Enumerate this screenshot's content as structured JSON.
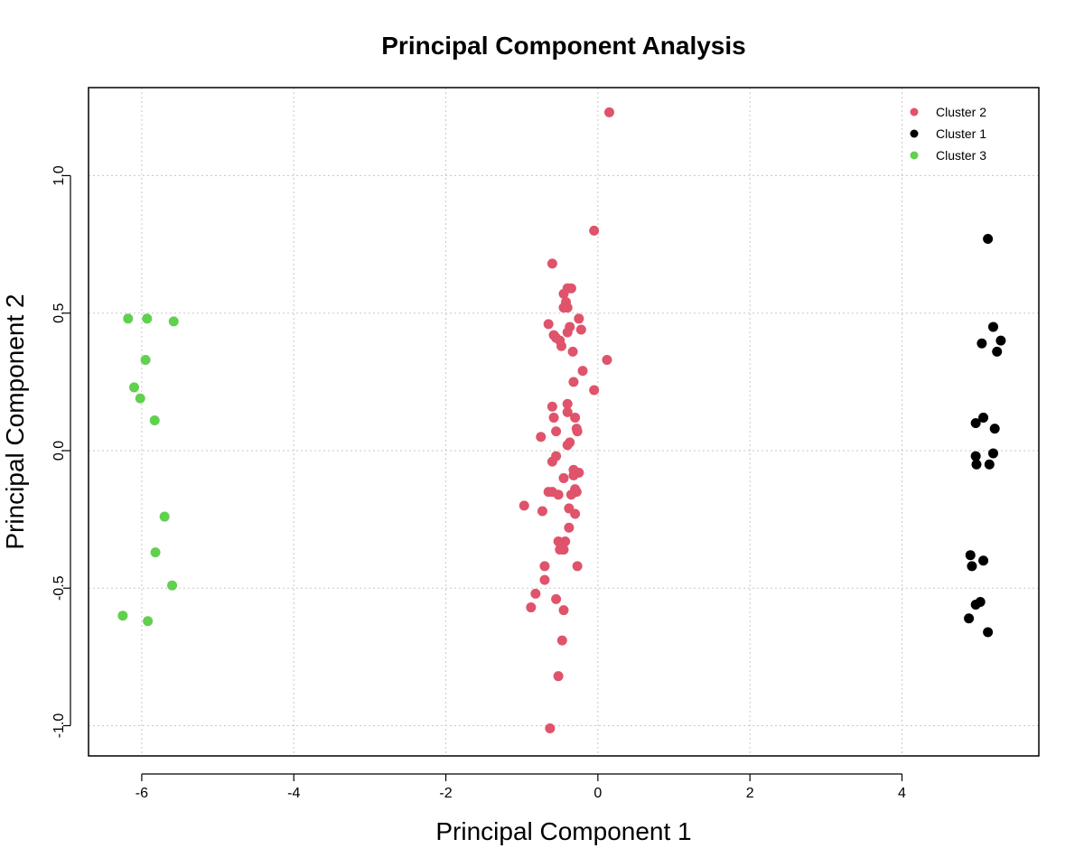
{
  "chart_data": {
    "type": "scatter",
    "title": "Principal Component Analysis",
    "xlabel": "Principal Component 1",
    "ylabel": "Principal Component 2",
    "xlim": [
      -6.7,
      5.8
    ],
    "ylim": [
      -1.11,
      1.32
    ],
    "x_ticks": [
      -6,
      -4,
      -2,
      0,
      2,
      4
    ],
    "x_tick_labels": [
      "-6",
      "-4",
      "-2",
      "0",
      "2",
      "4"
    ],
    "y_ticks": [
      -1.0,
      -0.5,
      0.0,
      0.5,
      1.0
    ],
    "y_tick_labels": [
      "-1.0",
      "-0.5",
      "0.0",
      "0.5",
      "1.0"
    ],
    "grid": true,
    "legend_position": "top-right",
    "series": [
      {
        "name": "Cluster 2",
        "color": "#df536b",
        "points": [
          [
            0.15,
            1.23
          ],
          [
            -0.05,
            0.8
          ],
          [
            -0.6,
            0.68
          ],
          [
            -0.35,
            0.59
          ],
          [
            -0.4,
            0.59
          ],
          [
            -0.45,
            0.57
          ],
          [
            -0.42,
            0.54
          ],
          [
            -0.45,
            0.52
          ],
          [
            -0.4,
            0.52
          ],
          [
            -0.25,
            0.48
          ],
          [
            -0.65,
            0.46
          ],
          [
            -0.37,
            0.45
          ],
          [
            -0.4,
            0.43
          ],
          [
            -0.58,
            0.42
          ],
          [
            -0.22,
            0.44
          ],
          [
            -0.5,
            0.4
          ],
          [
            -0.55,
            0.41
          ],
          [
            -0.48,
            0.38
          ],
          [
            -0.33,
            0.36
          ],
          [
            0.12,
            0.33
          ],
          [
            -0.2,
            0.29
          ],
          [
            -0.32,
            0.25
          ],
          [
            -0.05,
            0.22
          ],
          [
            -0.6,
            0.16
          ],
          [
            -0.4,
            0.17
          ],
          [
            -0.4,
            0.14
          ],
          [
            -0.58,
            0.12
          ],
          [
            -0.3,
            0.12
          ],
          [
            -0.28,
            0.08
          ],
          [
            -0.55,
            0.07
          ],
          [
            -0.27,
            0.07
          ],
          [
            -0.75,
            0.05
          ],
          [
            -0.37,
            0.03
          ],
          [
            -0.4,
            0.02
          ],
          [
            -0.55,
            -0.02
          ],
          [
            -0.6,
            -0.04
          ],
          [
            -0.32,
            -0.07
          ],
          [
            -0.25,
            -0.08
          ],
          [
            -0.45,
            -0.1
          ],
          [
            -0.32,
            -0.09
          ],
          [
            -0.3,
            -0.14
          ],
          [
            -0.65,
            -0.15
          ],
          [
            -0.6,
            -0.15
          ],
          [
            -0.28,
            -0.15
          ],
          [
            -0.35,
            -0.16
          ],
          [
            -0.52,
            -0.16
          ],
          [
            -0.97,
            -0.2
          ],
          [
            -0.38,
            -0.21
          ],
          [
            -0.73,
            -0.22
          ],
          [
            -0.3,
            -0.23
          ],
          [
            -0.38,
            -0.28
          ],
          [
            -0.52,
            -0.33
          ],
          [
            -0.43,
            -0.33
          ],
          [
            -0.48,
            -0.35
          ],
          [
            -0.5,
            -0.36
          ],
          [
            -0.45,
            -0.36
          ],
          [
            -0.7,
            -0.42
          ],
          [
            -0.27,
            -0.42
          ],
          [
            -0.7,
            -0.47
          ],
          [
            -0.82,
            -0.52
          ],
          [
            -0.55,
            -0.54
          ],
          [
            -0.88,
            -0.57
          ],
          [
            -0.45,
            -0.58
          ],
          [
            -0.47,
            -0.69
          ],
          [
            -0.52,
            -0.82
          ],
          [
            -0.63,
            -1.01
          ]
        ]
      },
      {
        "name": "Cluster 1",
        "color": "#000000",
        "points": [
          [
            5.13,
            0.77
          ],
          [
            5.2,
            0.45
          ],
          [
            5.05,
            0.39
          ],
          [
            5.3,
            0.4
          ],
          [
            5.25,
            0.36
          ],
          [
            5.07,
            0.12
          ],
          [
            4.97,
            0.1
          ],
          [
            5.22,
            0.08
          ],
          [
            5.2,
            -0.01
          ],
          [
            4.97,
            -0.02
          ],
          [
            5.15,
            -0.05
          ],
          [
            4.98,
            -0.05
          ],
          [
            4.9,
            -0.38
          ],
          [
            5.07,
            -0.4
          ],
          [
            4.92,
            -0.42
          ],
          [
            5.03,
            -0.55
          ],
          [
            4.97,
            -0.56
          ],
          [
            4.88,
            -0.61
          ],
          [
            5.13,
            -0.66
          ]
        ]
      },
      {
        "name": "Cluster 3",
        "color": "#61d04f",
        "points": [
          [
            -6.18,
            0.48
          ],
          [
            -5.93,
            0.48
          ],
          [
            -5.58,
            0.47
          ],
          [
            -5.95,
            0.33
          ],
          [
            -6.1,
            0.23
          ],
          [
            -6.02,
            0.19
          ],
          [
            -5.83,
            0.11
          ],
          [
            -5.7,
            -0.24
          ],
          [
            -5.82,
            -0.37
          ],
          [
            -5.6,
            -0.49
          ],
          [
            -6.25,
            -0.6
          ],
          [
            -5.92,
            -0.62
          ]
        ]
      }
    ]
  }
}
